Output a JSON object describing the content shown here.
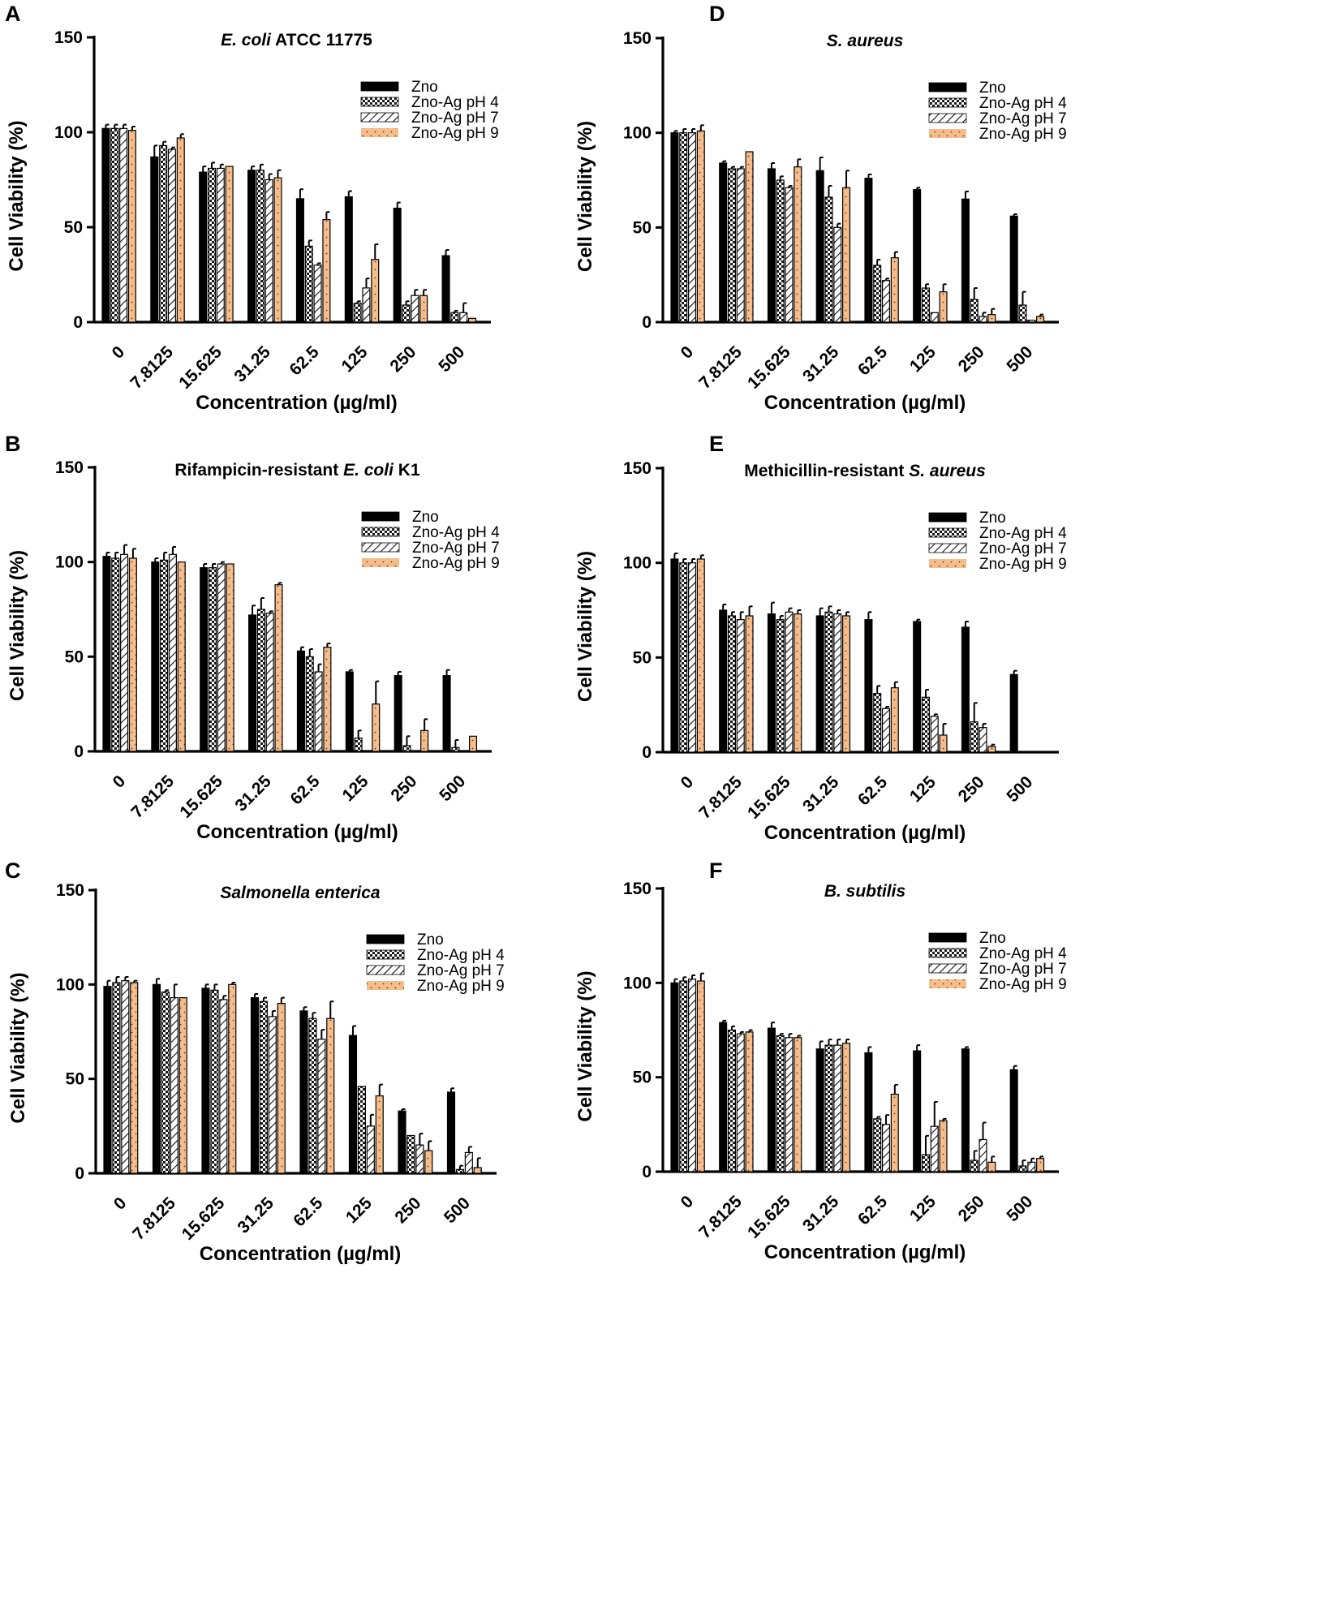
{
  "figure": {
    "legend_labels": [
      "Zno",
      "Zno-Ag pH 4",
      "Zno-Ag pH 7",
      "Zno-Ag pH 9"
    ],
    "colors": {
      "zno": "#000000",
      "ph4": "#ffffff",
      "ph7": "#ffffff",
      "ph9": "#f6bd8a",
      "ink": "#000000"
    },
    "patterns": [
      "solid",
      "checker",
      "diagonal",
      "dots"
    ]
  },
  "chart_data": [
    {
      "panel": "A",
      "type": "bar",
      "title": "E. coli ATCC 11775",
      "title_italic_part": "E. coli",
      "title_rest": " ATCC 11775",
      "xlabel": "Concentration (µg/ml)",
      "ylabel": "Cell Viability (%)",
      "ylim": [
        0,
        150
      ],
      "yticks": [
        "0",
        "50",
        "100",
        "150"
      ],
      "legend": "top-right",
      "categories": [
        "0",
        "7.8125",
        "15.625",
        "31.25",
        "62.5",
        "125",
        "250",
        "500"
      ],
      "series": [
        {
          "name": "Zno",
          "values": [
            102,
            87,
            79,
            80,
            65,
            66,
            60,
            35
          ],
          "errors": [
            2,
            6,
            3,
            2,
            5,
            3,
            3,
            3
          ]
        },
        {
          "name": "Zno-Ag pH 4",
          "values": [
            102,
            93,
            81,
            80,
            40,
            10,
            9,
            5
          ],
          "errors": [
            2,
            2,
            3,
            3,
            3,
            1,
            2,
            1
          ]
        },
        {
          "name": "Zno-Ag pH 7",
          "values": [
            102,
            91,
            81,
            75,
            30,
            18,
            14,
            5
          ],
          "errors": [
            2,
            1,
            2,
            3,
            1,
            5,
            3,
            5
          ]
        },
        {
          "name": "Zno-Ag pH 9",
          "values": [
            101,
            97,
            82,
            76,
            54,
            33,
            14,
            2
          ],
          "errors": [
            2,
            2,
            0,
            4,
            4,
            8,
            3,
            0
          ]
        }
      ]
    },
    {
      "panel": "B",
      "type": "bar",
      "title": "Rifampicin-resistant E. coli K1",
      "title_prefix": "Rifampicin-resistant ",
      "title_italic_part": "E. coli",
      "title_rest": " K1",
      "xlabel": "Concentration (µg/ml)",
      "ylabel": "Cell Viability (%)",
      "ylim": [
        0,
        150
      ],
      "yticks": [
        "0",
        "50",
        "100",
        "150"
      ],
      "legend": "top-right",
      "categories": [
        "0",
        "7.8125",
        "15.625",
        "31.25",
        "62.5",
        "125",
        "250",
        "500"
      ],
      "series": [
        {
          "name": "Zno",
          "values": [
            103,
            100,
            97,
            72,
            53,
            42,
            40,
            40
          ],
          "errors": [
            2,
            2,
            2,
            5,
            2,
            1,
            2,
            3
          ]
        },
        {
          "name": "Zno-Ag pH 4",
          "values": [
            102,
            101,
            97,
            75,
            50,
            7,
            3,
            2
          ],
          "errors": [
            3,
            4,
            2,
            6,
            4,
            4,
            5,
            4
          ]
        },
        {
          "name": "Zno-Ag pH 7",
          "values": [
            104,
            104,
            99,
            73,
            42,
            0,
            0,
            0
          ],
          "errors": [
            5,
            4,
            1,
            1,
            4,
            0,
            0,
            0
          ]
        },
        {
          "name": "Zno-Ag pH 9",
          "values": [
            102,
            100,
            99,
            88,
            55,
            25,
            11,
            8
          ],
          "errors": [
            5,
            0,
            0,
            1,
            2,
            12,
            6,
            0
          ]
        }
      ]
    },
    {
      "panel": "C",
      "type": "bar",
      "title": "Salmonella enterica",
      "title_italic_part": "Salmonella enterica",
      "title_rest": "",
      "xlabel": "Concentration (µg/ml)",
      "ylabel": "Cell Viability (%)",
      "ylim": [
        0,
        150
      ],
      "yticks": [
        "0",
        "50",
        "100",
        "150"
      ],
      "legend": "top-right",
      "categories": [
        "0",
        "7.8125",
        "15.625",
        "31.25",
        "62.5",
        "125",
        "250",
        "500"
      ],
      "series": [
        {
          "name": "Zno",
          "values": [
            99,
            100,
            98,
            93,
            86,
            73,
            33,
            43
          ],
          "errors": [
            3,
            3,
            2,
            2,
            2,
            5,
            1,
            2
          ]
        },
        {
          "name": "Zno-Ag pH 4",
          "values": [
            101,
            96,
            97,
            91,
            82,
            46,
            20,
            2
          ],
          "errors": [
            3,
            1,
            3,
            2,
            3,
            0,
            0,
            2
          ]
        },
        {
          "name": "Zno-Ag pH 7",
          "values": [
            102,
            93,
            92,
            83,
            71,
            25,
            15,
            11
          ],
          "errors": [
            2,
            7,
            2,
            3,
            5,
            6,
            6,
            3
          ]
        },
        {
          "name": "Zno-Ag pH 9",
          "values": [
            101,
            93,
            100,
            90,
            82,
            41,
            12,
            3
          ],
          "errors": [
            1,
            0,
            1,
            3,
            9,
            6,
            5,
            5
          ]
        }
      ]
    },
    {
      "panel": "D",
      "type": "bar",
      "title": "S. aureus",
      "title_italic_part": "S. aureus",
      "title_rest": "",
      "xlabel": "Concentration (µg/ml)",
      "ylabel": "Cell Viability (%)",
      "ylim": [
        0,
        150
      ],
      "yticks": [
        "0",
        "50",
        "100",
        "150"
      ],
      "legend": "top-right",
      "categories": [
        "0",
        "7.8125",
        "15.625",
        "31.25",
        "62.5",
        "125",
        "250",
        "500"
      ],
      "series": [
        {
          "name": "Zno",
          "values": [
            100,
            84,
            81,
            80,
            76,
            70,
            65,
            56
          ],
          "errors": [
            1,
            1,
            3,
            7,
            2,
            1,
            4,
            1
          ]
        },
        {
          "name": "Zno-Ag pH 4",
          "values": [
            100,
            81,
            75,
            66,
            30,
            18,
            12,
            9
          ],
          "errors": [
            2,
            1,
            2,
            6,
            3,
            2,
            6,
            7
          ]
        },
        {
          "name": "Zno-Ag pH 7",
          "values": [
            100,
            81,
            71,
            50,
            22,
            5,
            3,
            1
          ],
          "errors": [
            2,
            1,
            1,
            2,
            1,
            0,
            2,
            0
          ]
        },
        {
          "name": "Zno-Ag pH 9",
          "values": [
            101,
            90,
            82,
            71,
            34,
            16,
            4,
            3
          ],
          "errors": [
            3,
            0,
            4,
            9,
            3,
            4,
            3,
            1
          ]
        }
      ]
    },
    {
      "panel": "E",
      "type": "bar",
      "title": "Methicillin-resistant S. aureus",
      "title_prefix": "Methicillin-resistant ",
      "title_italic_part": "S. aureus",
      "title_rest": "",
      "xlabel": "Concentration (µg/ml)",
      "ylabel": "Cell Viability (%)",
      "ylim": [
        0,
        150
      ],
      "yticks": [
        "0",
        "50",
        "100",
        "150"
      ],
      "legend": "top-right",
      "categories": [
        "0",
        "7.8125",
        "15.625",
        "31.25",
        "62.5",
        "125",
        "250",
        "500"
      ],
      "series": [
        {
          "name": "Zno",
          "values": [
            102,
            75,
            73,
            72,
            70,
            69,
            66,
            41
          ],
          "errors": [
            3,
            3,
            6,
            4,
            4,
            1,
            3,
            2
          ]
        },
        {
          "name": "Zno-Ag pH 4",
          "values": [
            100,
            72,
            70,
            74,
            31,
            29,
            16,
            0
          ],
          "errors": [
            2,
            2,
            2,
            3,
            4,
            4,
            10,
            0
          ]
        },
        {
          "name": "Zno-Ag pH 7",
          "values": [
            100,
            70,
            74,
            73,
            23,
            19,
            13,
            0
          ],
          "errors": [
            2,
            4,
            2,
            2,
            1,
            1,
            2,
            0
          ]
        },
        {
          "name": "Zno-Ag pH 9",
          "values": [
            102,
            72,
            73,
            72,
            34,
            9,
            3,
            0
          ],
          "errors": [
            2,
            5,
            2,
            2,
            3,
            6,
            1,
            0
          ]
        }
      ]
    },
    {
      "panel": "F",
      "type": "bar",
      "title": "B. subtilis",
      "title_italic_part": "B. subtilis",
      "title_rest": "",
      "xlabel": "Concentration (µg/ml)",
      "ylabel": "Cell Viability (%)",
      "ylim": [
        0,
        150
      ],
      "yticks": [
        "0",
        "50",
        "100",
        "150"
      ],
      "legend": "top-right",
      "categories": [
        "0",
        "7.8125",
        "15.625",
        "31.25",
        "62.5",
        "125",
        "250",
        "500"
      ],
      "series": [
        {
          "name": "Zno",
          "values": [
            100,
            79,
            76,
            65,
            63,
            64,
            65,
            54
          ],
          "errors": [
            2,
            1,
            3,
            4,
            3,
            3,
            1,
            2
          ]
        },
        {
          "name": "Zno-Ag pH 4",
          "values": [
            101,
            75,
            72,
            67,
            28,
            9,
            6,
            3
          ],
          "errors": [
            2,
            2,
            1,
            3,
            1,
            10,
            5,
            3
          ]
        },
        {
          "name": "Zno-Ag pH 7",
          "values": [
            102,
            73,
            71,
            67,
            25,
            24,
            17,
            5
          ],
          "errors": [
            2,
            1,
            2,
            3,
            5,
            13,
            9,
            2
          ]
        },
        {
          "name": "Zno-Ag pH 9",
          "values": [
            101,
            74,
            71,
            68,
            41,
            27,
            5,
            7
          ],
          "errors": [
            4,
            1,
            1,
            2,
            5,
            1,
            3,
            1
          ]
        }
      ]
    }
  ]
}
